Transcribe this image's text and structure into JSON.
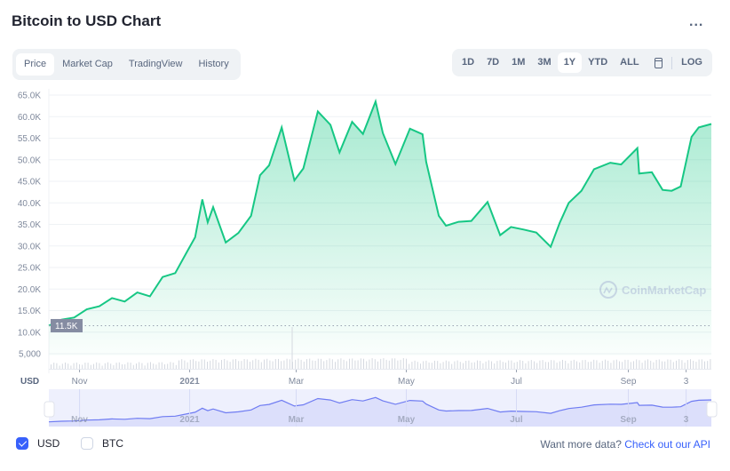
{
  "header": {
    "title": "Bitcoin to USD Chart",
    "more_label": "..."
  },
  "tabs": [
    {
      "label": "Price",
      "active": true
    },
    {
      "label": "Market Cap"
    },
    {
      "label": "TradingView"
    },
    {
      "label": "History"
    }
  ],
  "ranges": [
    {
      "label": "1D"
    },
    {
      "label": "7D"
    },
    {
      "label": "1M"
    },
    {
      "label": "3M"
    },
    {
      "label": "1Y",
      "active": true
    },
    {
      "label": "YTD"
    },
    {
      "label": "ALL"
    }
  ],
  "log_label": "LOG",
  "currency_label": "USD",
  "watermark": "CoinMarketCap",
  "colors": {
    "line": "#16c784",
    "navigator": "#6f7cf2",
    "accent": "#3861fb"
  },
  "chart_data": {
    "type": "area",
    "ylabel": "",
    "xlabel": "",
    "ylim": [
      5000,
      65000
    ],
    "yticks": [
      "65.0K",
      "60.0K",
      "55.0K",
      "50.0K",
      "45.0K",
      "40.0K",
      "35.0K",
      "30.0K",
      "25.0K",
      "20.0K",
      "15.0K",
      "10.0K",
      "5,000"
    ],
    "ytick_values": [
      65000,
      60000,
      55000,
      50000,
      45000,
      40000,
      35000,
      30000,
      25000,
      20000,
      15000,
      10000,
      5000
    ],
    "current_price_label": "11.5K",
    "current_price": 11500,
    "xticks": [
      {
        "label": "Nov",
        "date": "2020-11-01"
      },
      {
        "label": "2021",
        "date": "2021-01-01",
        "bold": true
      },
      {
        "label": "Mar",
        "date": "2021-03-01"
      },
      {
        "label": "May",
        "date": "2021-05-01"
      },
      {
        "label": "Jul",
        "date": "2021-07-01"
      },
      {
        "label": "Sep",
        "date": "2021-09-01"
      },
      {
        "label": "3",
        "date": "2021-10-03"
      }
    ],
    "grid": true,
    "series": [
      {
        "x": [
          "2020-10-15",
          "2020-10-22",
          "2020-10-29",
          "2020-11-05",
          "2020-11-12",
          "2020-11-19",
          "2020-11-26",
          "2020-12-03",
          "2020-12-10",
          "2020-12-17",
          "2020-12-24",
          "2020-12-31",
          "2021-01-04",
          "2021-01-08",
          "2021-01-11",
          "2021-01-14",
          "2021-01-21",
          "2021-01-28",
          "2021-02-04",
          "2021-02-09",
          "2021-02-14",
          "2021-02-21",
          "2021-02-28",
          "2021-03-05",
          "2021-03-13",
          "2021-03-20",
          "2021-03-25",
          "2021-04-01",
          "2021-04-07",
          "2021-04-14",
          "2021-04-18",
          "2021-04-25",
          "2021-05-03",
          "2021-05-10",
          "2021-05-12",
          "2021-05-19",
          "2021-05-23",
          "2021-05-30",
          "2021-06-06",
          "2021-06-15",
          "2021-06-22",
          "2021-06-28",
          "2021-07-05",
          "2021-07-12",
          "2021-07-20",
          "2021-07-25",
          "2021-07-30",
          "2021-08-06",
          "2021-08-13",
          "2021-08-22",
          "2021-08-28",
          "2021-09-06",
          "2021-09-07",
          "2021-09-14",
          "2021-09-20",
          "2021-09-25",
          "2021-09-30",
          "2021-10-06",
          "2021-10-10",
          "2021-10-17"
        ],
        "y": [
          11500,
          12900,
          13400,
          15300,
          16000,
          17900,
          17100,
          19200,
          18300,
          22800,
          23700,
          29000,
          32000,
          40800,
          35500,
          39000,
          30800,
          33000,
          37000,
          46400,
          48700,
          57500,
          45200,
          48000,
          61200,
          58100,
          51700,
          58800,
          56000,
          63500,
          56200,
          49000,
          57200,
          55900,
          49500,
          37000,
          34700,
          35600,
          35800,
          40200,
          32500,
          34400,
          33800,
          33100,
          29800,
          35400,
          40000,
          42800,
          47800,
          49300,
          48900,
          52700,
          46800,
          47100,
          43000,
          42800,
          43800,
          55300,
          57500,
          58300
        ]
      }
    ]
  },
  "footer": {
    "usd_label": "USD",
    "btc_label": "BTC",
    "more_data_text": "Want more data?",
    "api_link": "Check out our API"
  }
}
